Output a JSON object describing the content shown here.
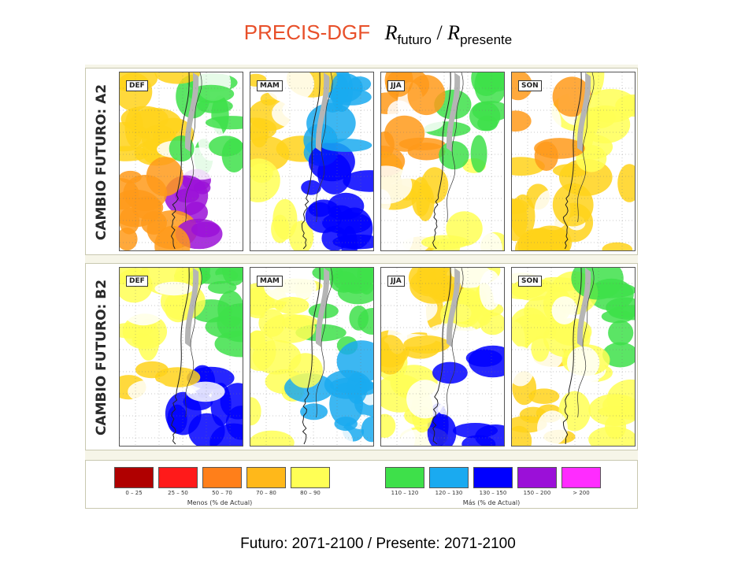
{
  "title": {
    "main": "PRECIS-DGF",
    "formula_var1": "R",
    "formula_sub1": "futuro",
    "formula_sep": "/",
    "formula_var2": "R",
    "formula_sub2": "presente"
  },
  "rows": [
    {
      "label": "CAMBIO FUTURO: A2",
      "panels": [
        {
          "season": "DEF"
        },
        {
          "season": "MAM"
        },
        {
          "season": "JJA"
        },
        {
          "season": "SON"
        }
      ]
    },
    {
      "label": "CAMBIO FUTURO: B2",
      "panels": [
        {
          "season": "DEF"
        },
        {
          "season": "MAM"
        },
        {
          "season": "JJA"
        },
        {
          "season": "SON"
        }
      ]
    }
  ],
  "legend": {
    "less": [
      {
        "label": "0 – 25",
        "color": "#b00000"
      },
      {
        "label": "25 – 50",
        "color": "#ff1a1a"
      },
      {
        "label": "50 – 70",
        "color": "#ff7f1a"
      },
      {
        "label": "70 – 80",
        "color": "#ffb81a"
      },
      {
        "label": "80 – 90",
        "color": "#ffff55"
      }
    ],
    "more": [
      {
        "label": "110 – 120",
        "color": "#3ee04a"
      },
      {
        "label": "120 – 130",
        "color": "#1aaaf0"
      },
      {
        "label": "130 – 150",
        "color": "#0000ff"
      },
      {
        "label": "150 – 200",
        "color": "#9b10d8"
      },
      {
        "label": "> 200",
        "color": "#ff2cff"
      }
    ],
    "less_caption": "Menos (% de Actual)",
    "more_caption": "Más (% de Actual)"
  },
  "footer": "Futuro: 2071-2100 / Presente: 2071-2100"
}
